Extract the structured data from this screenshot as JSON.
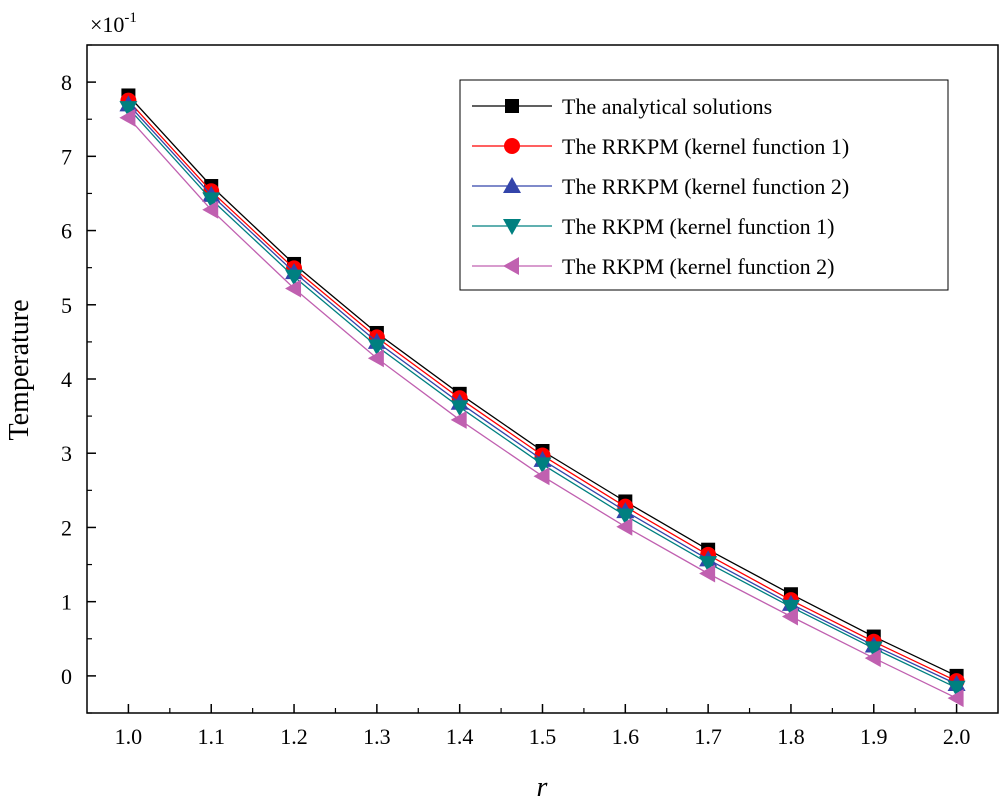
{
  "chart_data": {
    "type": "line",
    "xlabel": "r",
    "ylabel": "Temperature",
    "y_multiplier": {
      "base": "×10",
      "exponent": "-1"
    },
    "xlim": [
      0.95,
      2.05
    ],
    "ylim": [
      -0.5,
      8.5
    ],
    "xticks": [
      1.0,
      1.1,
      1.2,
      1.3,
      1.4,
      1.5,
      1.6,
      1.7,
      1.8,
      1.9,
      2.0
    ],
    "xtick_labels": [
      "1.0",
      "1.1",
      "1.2",
      "1.3",
      "1.4",
      "1.5",
      "1.6",
      "1.7",
      "1.8",
      "1.9",
      "2.0"
    ],
    "yticks": [
      0,
      1,
      2,
      3,
      4,
      5,
      6,
      7,
      8
    ],
    "ytick_labels": [
      "0",
      "1",
      "2",
      "3",
      "4",
      "5",
      "6",
      "7",
      "8"
    ],
    "grid": false,
    "legend_position": "top-right",
    "x": [
      1.0,
      1.1,
      1.2,
      1.3,
      1.4,
      1.5,
      1.6,
      1.7,
      1.8,
      1.9,
      2.0
    ],
    "series": [
      {
        "name": "The analytical solutions",
        "color": "#000000",
        "marker": "square",
        "values": [
          7.82,
          6.6,
          5.55,
          4.62,
          3.8,
          3.03,
          2.35,
          1.7,
          1.1,
          0.53,
          0.0
        ]
      },
      {
        "name": "The RRKPM (kernel function 1)",
        "color": "#ff0000",
        "marker": "circle",
        "values": [
          7.75,
          6.53,
          5.49,
          4.56,
          3.74,
          2.97,
          2.28,
          1.63,
          1.02,
          0.46,
          -0.07
        ]
      },
      {
        "name": "The RRKPM (kernel function 2)",
        "color": "#3344aa",
        "marker": "triangle-up",
        "values": [
          7.7,
          6.48,
          5.44,
          4.5,
          3.68,
          2.91,
          2.22,
          1.57,
          0.97,
          0.41,
          -0.11
        ]
      },
      {
        "name": "The RKPM (kernel function 1)",
        "color": "#008080",
        "marker": "triangle-down",
        "values": [
          7.65,
          6.42,
          5.38,
          4.44,
          3.62,
          2.85,
          2.16,
          1.52,
          0.93,
          0.37,
          -0.16
        ]
      },
      {
        "name": "The RKPM (kernel function 2)",
        "color": "#c060b0",
        "marker": "triangle-left",
        "values": [
          7.52,
          6.28,
          5.22,
          4.28,
          3.45,
          2.69,
          2.01,
          1.38,
          0.8,
          0.24,
          -0.3
        ]
      }
    ]
  }
}
